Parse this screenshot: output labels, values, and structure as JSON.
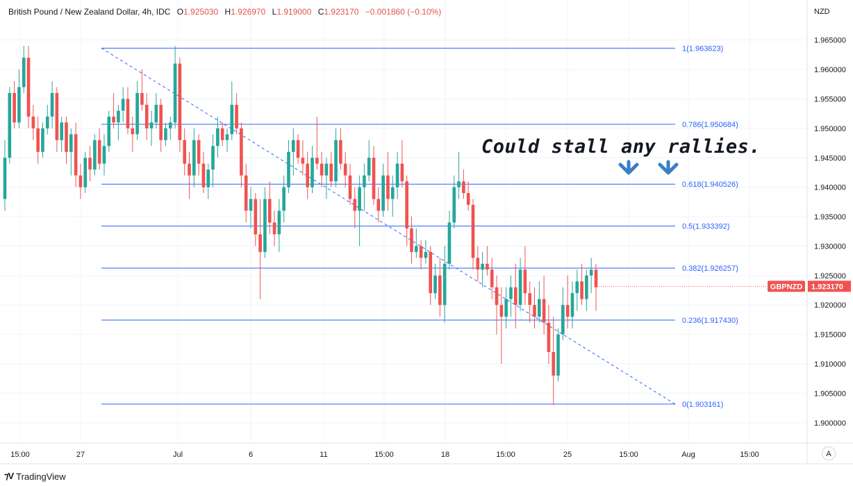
{
  "header": {
    "symbol": "British Pound / New Zealand Dollar, 4h, IDC",
    "open_label": "O",
    "open": "1.925030",
    "high_label": "H",
    "high": "1.926970",
    "low_label": "L",
    "low": "1.919000",
    "close_label": "C",
    "close": "1.923170",
    "change": "−0.001860 (−0.10%)"
  },
  "currency": "NZD",
  "annotation": "Could stall any rallies.",
  "price_badge": {
    "ticker": "GBPNZD",
    "value": "1.923170"
  },
  "auto_scale_label": "A",
  "brand": "TradingView",
  "colors": {
    "up": "#26a69a",
    "down": "#ef5350",
    "fib": "#2962ff",
    "badge": "#ef5350",
    "annotation_arrow": "#3a7ec6"
  },
  "chart_data": {
    "type": "candlestick",
    "symbol": "GBPNZD",
    "interval": "4h",
    "ylim": [
      1.8975,
      1.9685
    ],
    "y_ticks": [
      "1.900000",
      "1.905000",
      "1.910000",
      "1.915000",
      "1.920000",
      "1.925000",
      "1.930000",
      "1.935000",
      "1.940000",
      "1.945000",
      "1.950000",
      "1.955000",
      "1.960000",
      "1.965000"
    ],
    "x_ticks": [
      "15:00",
      "27",
      "Jul",
      "6",
      "11",
      "15:00",
      "18",
      "15:00",
      "25",
      "15:00",
      "Aug",
      "15:00"
    ],
    "fib_levels": [
      {
        "ratio": 1,
        "price": 1.963623,
        "label": "1(1.963623)"
      },
      {
        "ratio": 0.786,
        "price": 1.950684,
        "label": "0.786(1.950684)"
      },
      {
        "ratio": 0.618,
        "price": 1.940526,
        "label": "0.618(1.940526)"
      },
      {
        "ratio": 0.5,
        "price": 1.933392,
        "label": "0.5(1.933392)"
      },
      {
        "ratio": 0.382,
        "price": 1.926257,
        "label": "0.382(1.926257)"
      },
      {
        "ratio": 0.236,
        "price": 1.91743,
        "label": "0.236(1.917430)"
      },
      {
        "ratio": 0,
        "price": 1.903161,
        "label": "0(1.903161)"
      }
    ],
    "trendline": {
      "start_price": 1.963623,
      "end_price": 1.903161,
      "style": "dashed"
    },
    "last_price": 1.92317,
    "candles": [
      [
        1.938,
        1.948,
        1.936,
        1.945
      ],
      [
        1.945,
        1.957,
        1.944,
        1.956
      ],
      [
        1.956,
        1.958,
        1.95,
        1.951
      ],
      [
        1.951,
        1.96,
        1.95,
        1.957
      ],
      [
        1.957,
        1.964,
        1.956,
        1.962
      ],
      [
        1.962,
        1.964,
        1.95,
        1.952
      ],
      [
        1.952,
        1.954,
        1.948,
        1.95
      ],
      [
        1.95,
        1.952,
        1.944,
        1.946
      ],
      [
        1.946,
        1.951,
        1.945,
        1.95
      ],
      [
        1.95,
        1.954,
        1.949,
        1.952
      ],
      [
        1.952,
        1.958,
        1.95,
        1.956
      ],
      [
        1.956,
        1.957,
        1.946,
        1.948
      ],
      [
        1.948,
        1.952,
        1.946,
        1.951
      ],
      [
        1.951,
        1.952,
        1.944,
        1.946
      ],
      [
        1.946,
        1.95,
        1.942,
        1.949
      ],
      [
        1.949,
        1.951,
        1.94,
        1.942
      ],
      [
        1.942,
        1.944,
        1.938,
        1.94
      ],
      [
        1.94,
        1.946,
        1.939,
        1.945
      ],
      [
        1.945,
        1.947,
        1.941,
        1.943
      ],
      [
        1.943,
        1.949,
        1.942,
        1.948
      ],
      [
        1.948,
        1.95,
        1.943,
        1.944
      ],
      [
        1.944,
        1.949,
        1.942,
        1.947
      ],
      [
        1.947,
        1.953,
        1.946,
        1.952
      ],
      [
        1.952,
        1.956,
        1.95,
        1.951
      ],
      [
        1.951,
        1.954,
        1.948,
        1.953
      ],
      [
        1.953,
        1.957,
        1.951,
        1.955
      ],
      [
        1.955,
        1.957,
        1.949,
        1.95
      ],
      [
        1.95,
        1.952,
        1.946,
        1.949
      ],
      [
        1.949,
        1.958,
        1.948,
        1.956
      ],
      [
        1.956,
        1.96,
        1.953,
        1.954
      ],
      [
        1.954,
        1.956,
        1.948,
        1.95
      ],
      [
        1.95,
        1.953,
        1.947,
        1.951
      ],
      [
        1.951,
        1.956,
        1.95,
        1.954
      ],
      [
        1.954,
        1.955,
        1.946,
        1.948
      ],
      [
        1.948,
        1.951,
        1.947,
        1.95
      ],
      [
        1.95,
        1.952,
        1.948,
        1.951
      ],
      [
        1.951,
        1.964,
        1.95,
        1.961
      ],
      [
        1.961,
        1.962,
        1.946,
        1.948
      ],
      [
        1.948,
        1.95,
        1.942,
        1.944
      ],
      [
        1.944,
        1.946,
        1.938,
        1.942
      ],
      [
        1.942,
        1.95,
        1.94,
        1.948
      ],
      [
        1.948,
        1.949,
        1.942,
        1.944
      ],
      [
        1.944,
        1.946,
        1.939,
        1.94
      ],
      [
        1.94,
        1.944,
        1.938,
        1.943
      ],
      [
        1.943,
        1.949,
        1.94,
        1.947
      ],
      [
        1.947,
        1.952,
        1.945,
        1.95
      ],
      [
        1.95,
        1.951,
        1.947,
        1.948
      ],
      [
        1.948,
        1.95,
        1.946,
        1.949
      ],
      [
        1.949,
        1.958,
        1.948,
        1.954
      ],
      [
        1.954,
        1.956,
        1.949,
        1.95
      ],
      [
        1.95,
        1.951,
        1.94,
        1.942
      ],
      [
        1.942,
        1.944,
        1.934,
        1.936
      ],
      [
        1.936,
        1.94,
        1.933,
        1.938
      ],
      [
        1.938,
        1.939,
        1.93,
        1.932
      ],
      [
        1.932,
        1.938,
        1.921,
        1.929
      ],
      [
        1.929,
        1.94,
        1.928,
        1.938
      ],
      [
        1.938,
        1.941,
        1.932,
        1.934
      ],
      [
        1.934,
        1.936,
        1.93,
        1.932
      ],
      [
        1.932,
        1.938,
        1.929,
        1.936
      ],
      [
        1.936,
        1.942,
        1.934,
        1.94
      ],
      [
        1.94,
        1.948,
        1.939,
        1.946
      ],
      [
        1.946,
        1.95,
        1.942,
        1.948
      ],
      [
        1.948,
        1.949,
        1.944,
        1.945
      ],
      [
        1.945,
        1.948,
        1.942,
        1.944
      ],
      [
        1.944,
        1.946,
        1.938,
        1.94
      ],
      [
        1.94,
        1.947,
        1.939,
        1.945
      ],
      [
        1.945,
        1.952,
        1.943,
        1.944
      ],
      [
        1.944,
        1.946,
        1.94,
        1.942
      ],
      [
        1.942,
        1.945,
        1.938,
        1.944
      ],
      [
        1.944,
        1.946,
        1.94,
        1.941
      ],
      [
        1.941,
        1.95,
        1.94,
        1.948
      ],
      [
        1.948,
        1.95,
        1.943,
        1.944
      ],
      [
        1.944,
        1.946,
        1.94,
        1.942
      ],
      [
        1.942,
        1.944,
        1.937,
        1.938
      ],
      [
        1.938,
        1.94,
        1.933,
        1.936
      ],
      [
        1.936,
        1.942,
        1.93,
        1.94
      ],
      [
        1.94,
        1.944,
        1.936,
        1.942
      ],
      [
        1.942,
        1.948,
        1.941,
        1.945
      ],
      [
        1.945,
        1.947,
        1.937,
        1.938
      ],
      [
        1.938,
        1.94,
        1.934,
        1.936
      ],
      [
        1.936,
        1.944,
        1.935,
        1.942
      ],
      [
        1.942,
        1.946,
        1.936,
        1.938
      ],
      [
        1.938,
        1.942,
        1.935,
        1.94
      ],
      [
        1.94,
        1.946,
        1.938,
        1.944
      ],
      [
        1.944,
        1.948,
        1.94,
        1.941
      ],
      [
        1.941,
        1.942,
        1.93,
        1.933
      ],
      [
        1.933,
        1.935,
        1.927,
        1.929
      ],
      [
        1.929,
        1.933,
        1.928,
        1.93
      ],
      [
        1.93,
        1.931,
        1.926,
        1.928
      ],
      [
        1.928,
        1.931,
        1.927,
        1.929
      ],
      [
        1.929,
        1.93,
        1.92,
        1.922
      ],
      [
        1.922,
        1.927,
        1.921,
        1.925
      ],
      [
        1.925,
        1.928,
        1.918,
        1.92
      ],
      [
        1.92,
        1.93,
        1.917,
        1.927
      ],
      [
        1.927,
        1.936,
        1.926,
        1.934
      ],
      [
        1.934,
        1.942,
        1.933,
        1.94
      ],
      [
        1.94,
        1.946,
        1.938,
        1.941
      ],
      [
        1.941,
        1.943,
        1.938,
        1.939
      ],
      [
        1.939,
        1.941,
        1.936,
        1.937
      ],
      [
        1.937,
        1.938,
        1.926,
        1.928
      ],
      [
        1.928,
        1.93,
        1.924,
        1.926
      ],
      [
        1.926,
        1.929,
        1.923,
        1.927
      ],
      [
        1.927,
        1.93,
        1.925,
        1.926
      ],
      [
        1.926,
        1.928,
        1.921,
        1.923
      ],
      [
        1.923,
        1.925,
        1.915,
        1.92
      ],
      [
        1.92,
        1.923,
        1.91,
        1.918
      ],
      [
        1.918,
        1.923,
        1.916,
        1.921
      ],
      [
        1.921,
        1.925,
        1.918,
        1.923
      ],
      [
        1.923,
        1.927,
        1.916,
        1.92
      ],
      [
        1.92,
        1.928,
        1.919,
        1.926
      ],
      [
        1.926,
        1.93,
        1.92,
        1.922
      ],
      [
        1.922,
        1.924,
        1.917,
        1.92
      ],
      [
        1.92,
        1.923,
        1.916,
        1.918
      ],
      [
        1.918,
        1.924,
        1.917,
        1.921
      ],
      [
        1.921,
        1.925,
        1.915,
        1.917
      ],
      [
        1.917,
        1.92,
        1.91,
        1.912
      ],
      [
        1.912,
        1.918,
        1.903,
        1.908
      ],
      [
        1.908,
        1.916,
        1.907,
        1.915
      ],
      [
        1.915,
        1.923,
        1.914,
        1.92
      ],
      [
        1.92,
        1.925,
        1.916,
        1.918
      ],
      [
        1.918,
        1.924,
        1.916,
        1.922
      ],
      [
        1.922,
        1.926,
        1.919,
        1.924
      ],
      [
        1.924,
        1.927,
        1.92,
        1.921
      ],
      [
        1.921,
        1.926,
        1.919,
        1.925
      ],
      [
        1.925,
        1.928,
        1.922,
        1.926
      ],
      [
        1.926,
        1.927,
        1.919,
        1.923
      ]
    ]
  }
}
